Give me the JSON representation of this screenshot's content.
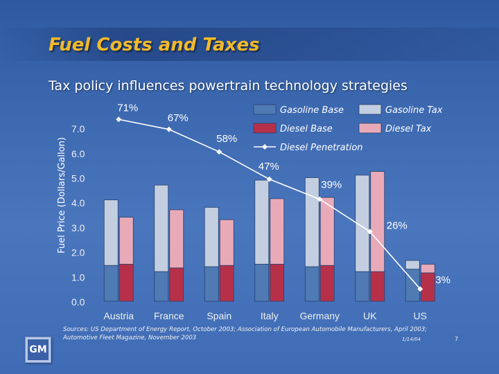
{
  "slide": {
    "title": "Fuel Costs and Taxes",
    "subtitle": "Tax policy influences  powertrain technology strategies",
    "sources_line1": "Sources: US Department of Energy Report, October 2003; Association of European Automobile Manufacturers, April 2003;",
    "sources_line2": "Automotive Fleet Magazine, November 2003",
    "date": "1/14/04",
    "page_number": "7",
    "logo_text": "GM"
  },
  "chart_data": {
    "type": "bar",
    "ylabel": "Fuel Price (Dollars/Gallon)",
    "ylim": [
      0,
      7.5
    ],
    "yticks": [
      "0.0",
      "1.0",
      "2.0",
      "3.0",
      "4.0",
      "5.0",
      "6.0",
      "7.0"
    ],
    "categories": [
      "Austria",
      "France",
      "Spain",
      "Italy",
      "Germany",
      "UK",
      "US"
    ],
    "gasoline_base": [
      1.45,
      1.2,
      1.4,
      1.5,
      1.4,
      1.2,
      1.3
    ],
    "gasoline_tax": [
      2.65,
      3.5,
      2.4,
      3.4,
      3.6,
      3.9,
      0.35
    ],
    "diesel_base": [
      1.5,
      1.35,
      1.45,
      1.5,
      1.45,
      1.2,
      1.15
    ],
    "diesel_tax": [
      1.9,
      2.35,
      1.85,
      2.65,
      2.75,
      4.05,
      0.35
    ],
    "diesel_penetration": [
      71,
      67,
      58,
      47,
      39,
      26,
      3
    ],
    "diesel_penetration_labels": [
      "71%",
      "67%",
      "58%",
      "47%",
      "39%",
      "26%",
      "3%"
    ],
    "legend": {
      "gasoline_base": "Gasoline Base",
      "gasoline_tax": "Gasoline Tax",
      "diesel_base": "Diesel Base",
      "diesel_tax": "Diesel Tax",
      "diesel_penetration": "Diesel Penetration"
    },
    "legend_position": "top-right",
    "grid": false,
    "colors": {
      "gasoline_base": "#4f7ab3",
      "gasoline_tax": "#c3cee0",
      "diesel_base": "#b7304a",
      "diesel_tax": "#e9aab8",
      "line": "#ffffff"
    }
  }
}
